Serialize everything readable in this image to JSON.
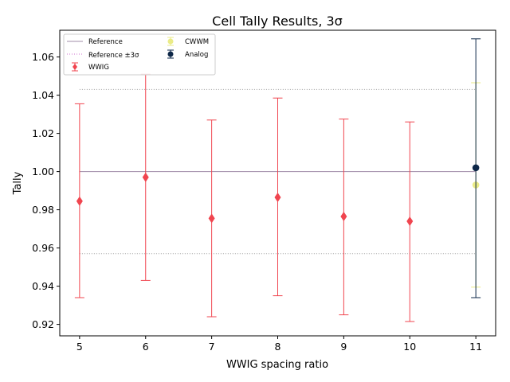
{
  "chart_data": {
    "type": "scatter",
    "title": "Cell Tally Results, 3σ",
    "xlabel": "WWIG spacing ratio",
    "ylabel": "Tally",
    "xlim": [
      4.7,
      11.3
    ],
    "ylim": [
      0.914,
      1.074
    ],
    "xticks": [
      5,
      6,
      7,
      8,
      9,
      10,
      11
    ],
    "yticks": [
      0.92,
      0.94,
      0.96,
      0.98,
      1.0,
      1.02,
      1.04,
      1.06
    ],
    "ytick_labels": [
      "0.92",
      "0.94",
      "0.96",
      "0.98",
      "1.00",
      "1.02",
      "1.04",
      "1.06"
    ],
    "grid": false,
    "legend_position": "top-left",
    "reference": {
      "label": "Reference",
      "value": 1.0,
      "x_range": [
        5,
        11
      ],
      "color": "#a08ca8"
    },
    "reference_band": {
      "label": "Reference ±3σ",
      "lower": 0.957,
      "upper": 1.043,
      "x_range": [
        5,
        11
      ],
      "color": "#a0a0a0"
    },
    "series": [
      {
        "name": "WWIG",
        "color": "#f0454f",
        "marker": "diamond",
        "points": [
          {
            "x": 5,
            "y": 0.9845,
            "lower": 0.934,
            "upper": 1.0355
          },
          {
            "x": 6,
            "y": 0.997,
            "lower": 0.943,
            "upper": 1.051
          },
          {
            "x": 7,
            "y": 0.9755,
            "lower": 0.924,
            "upper": 1.027
          },
          {
            "x": 8,
            "y": 0.9865,
            "lower": 0.935,
            "upper": 1.0385
          },
          {
            "x": 9,
            "y": 0.9765,
            "lower": 0.925,
            "upper": 1.0275
          },
          {
            "x": 10,
            "y": 0.974,
            "lower": 0.9215,
            "upper": 1.026
          }
        ]
      },
      {
        "name": "CWWM",
        "color": "#eaeb86",
        "marker": "circle",
        "points": [
          {
            "x": 11,
            "y": 0.993,
            "lower": 0.9395,
            "upper": 1.0465
          }
        ]
      },
      {
        "name": "Analog",
        "color": "#0d2748",
        "marker": "circle",
        "points": [
          {
            "x": 11,
            "y": 1.002,
            "lower": 0.934,
            "upper": 1.0695
          }
        ]
      }
    ]
  }
}
